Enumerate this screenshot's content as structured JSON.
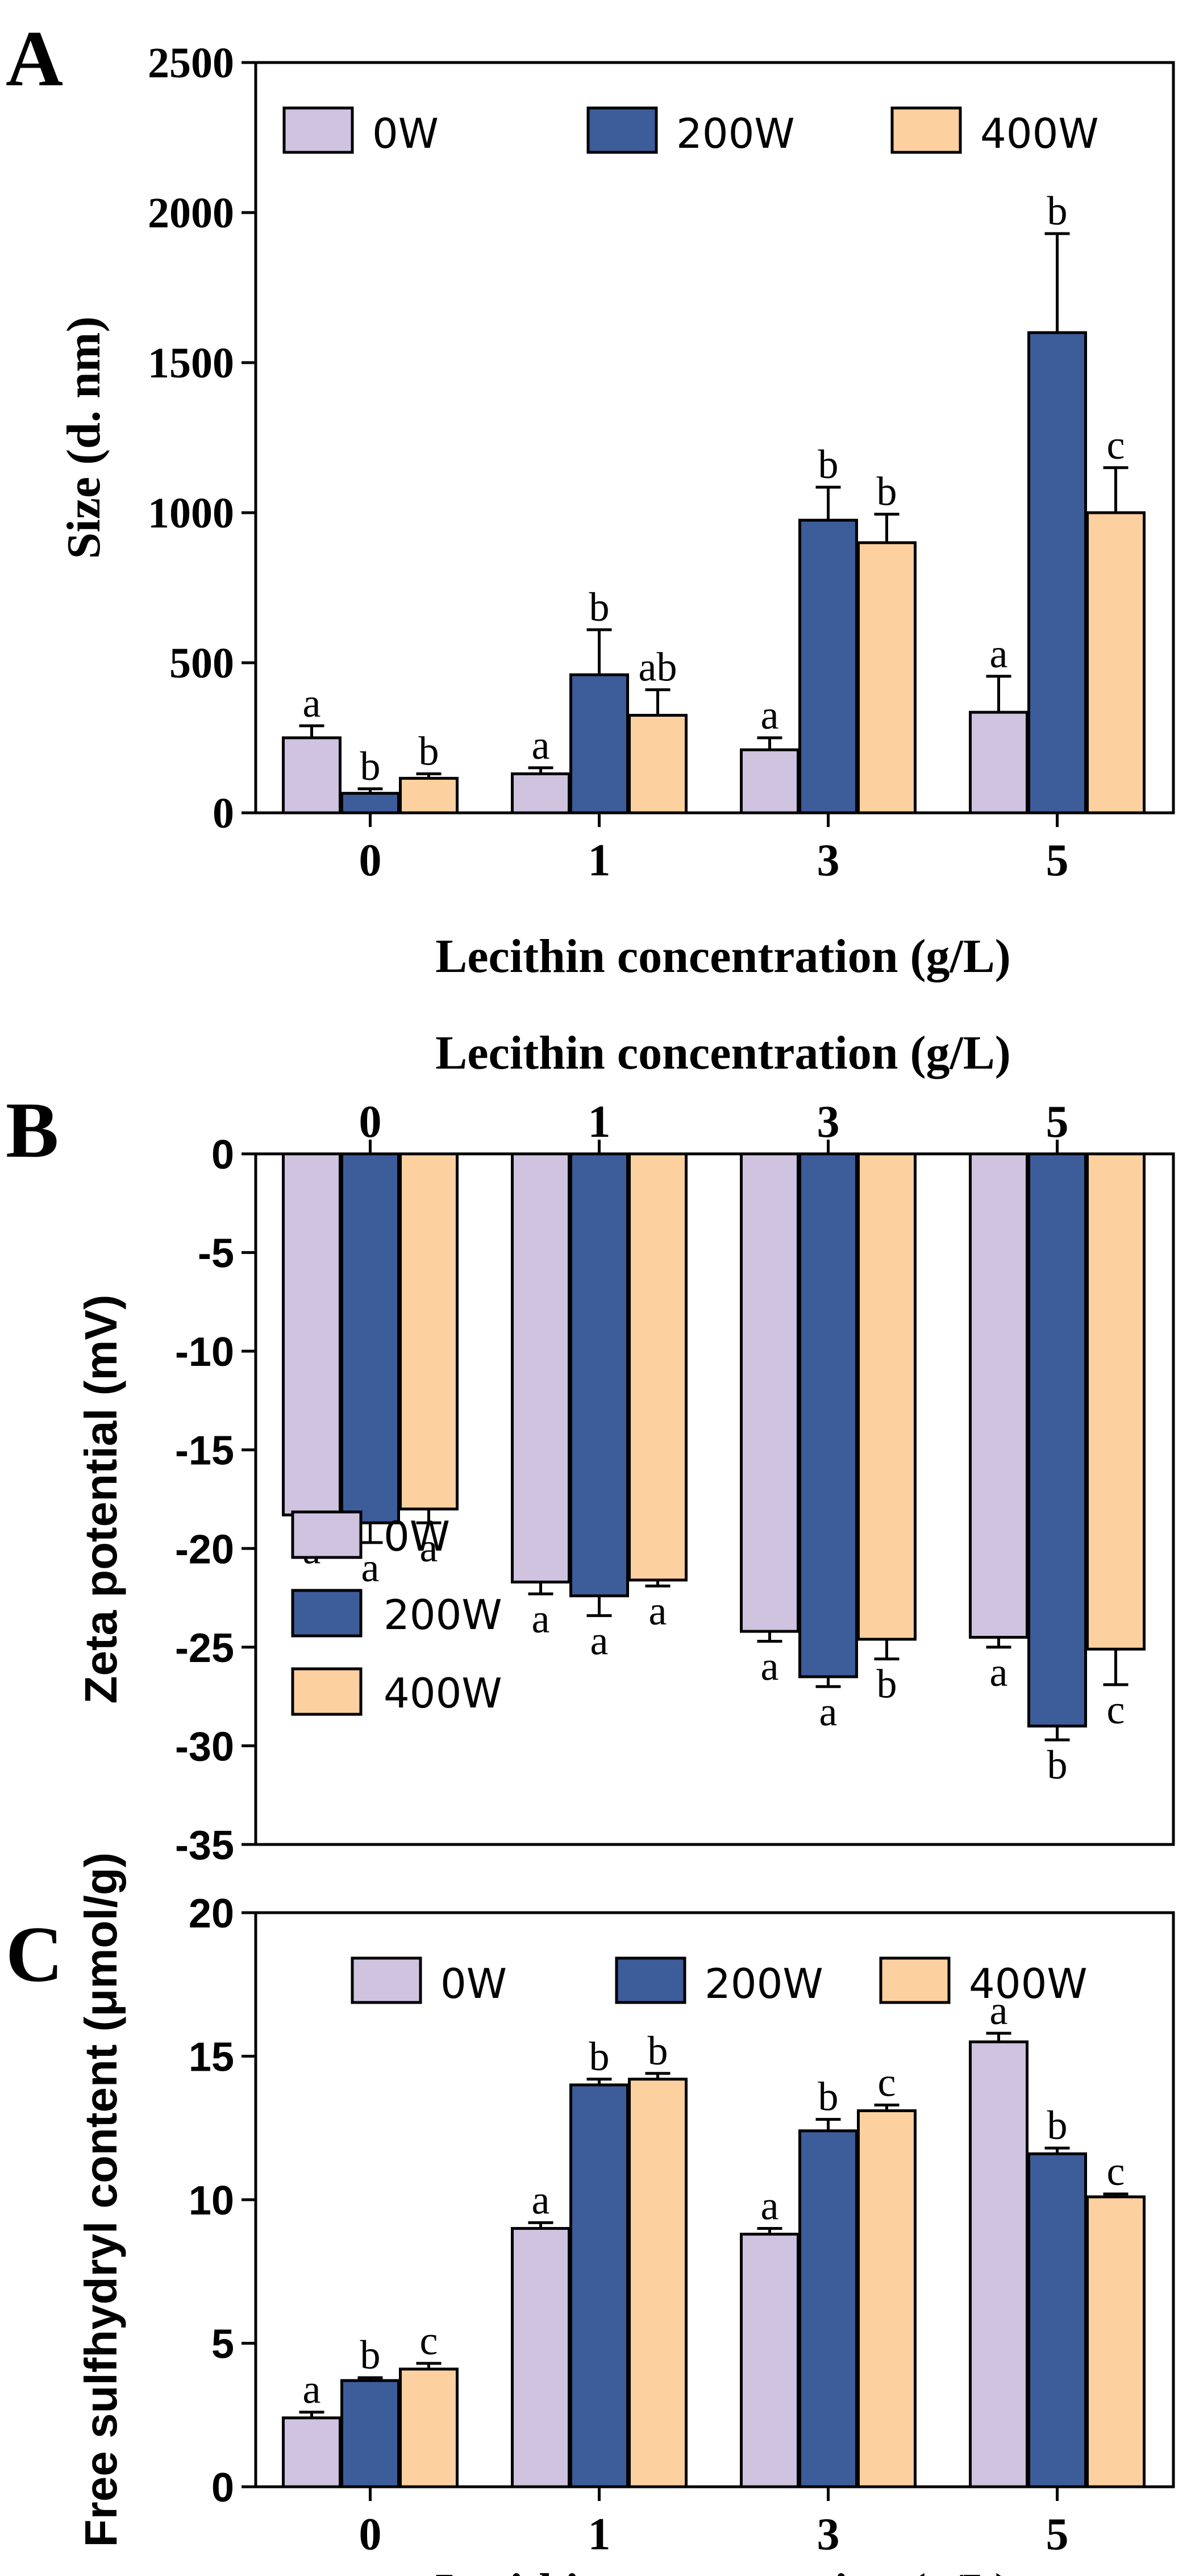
{
  "series_names": [
    "0W",
    "200W",
    "400W"
  ],
  "colors": {
    "0W": "#cfc3e0",
    "200W": "#3d5c9a",
    "400W": "#fdd0a0",
    "stroke": "#000000"
  },
  "chart_data": [
    {
      "panel": "A",
      "type": "bar",
      "categories": [
        "0",
        "1",
        "3",
        "5"
      ],
      "xlabel": "Lecithin concentration (g/L)",
      "ylabel": "Size (d. nm)",
      "ylim": [
        0,
        2500
      ],
      "yticks": [
        0,
        500,
        1000,
        1500,
        2000,
        2500
      ],
      "legend": "top",
      "series": [
        {
          "name": "0W",
          "values": [
            250,
            130,
            210,
            335
          ],
          "errors": [
            40,
            20,
            40,
            120
          ],
          "letters": [
            "a",
            "a",
            "a",
            "a"
          ]
        },
        {
          "name": "200W",
          "values": [
            65,
            460,
            975,
            1600
          ],
          "errors": [
            15,
            150,
            110,
            330
          ],
          "letters": [
            "b",
            "b",
            "b",
            "b"
          ]
        },
        {
          "name": "400W",
          "values": [
            115,
            325,
            900,
            1000
          ],
          "errors": [
            15,
            85,
            95,
            150
          ],
          "letters": [
            "b",
            "ab",
            "b",
            "c"
          ]
        }
      ]
    },
    {
      "panel": "B",
      "type": "bar",
      "categories": [
        "0",
        "1",
        "3",
        "5"
      ],
      "xlabel": "Lecithin concentration (g/L)",
      "ylabel": "Zeta potential (mV)",
      "ylim": [
        -35,
        0
      ],
      "yticks": [
        0,
        -5,
        -10,
        -15,
        -20,
        -25,
        -30,
        -35
      ],
      "legend": "bottom-left",
      "series": [
        {
          "name": "0W",
          "values": [
            -18.3,
            -21.7,
            -24.2,
            -24.5
          ],
          "errors": [
            0.5,
            0.6,
            0.5,
            0.5
          ],
          "letters": [
            "a",
            "a",
            "a",
            "a"
          ]
        },
        {
          "name": "200W",
          "values": [
            -18.7,
            -22.4,
            -26.5,
            -29.0
          ],
          "errors": [
            1.0,
            1.0,
            0.5,
            0.7
          ],
          "letters": [
            "a",
            "a",
            "a",
            "b"
          ]
        },
        {
          "name": "400W",
          "values": [
            -18.0,
            -21.6,
            -24.6,
            -25.1
          ],
          "errors": [
            0.7,
            0.3,
            1.0,
            1.8
          ],
          "letters": [
            "a",
            "a",
            "b",
            "c"
          ]
        }
      ]
    },
    {
      "panel": "C",
      "type": "bar",
      "categories": [
        "0",
        "1",
        "3",
        "5"
      ],
      "xlabel": "Lecithin concentration (g/L)",
      "ylabel": "Free sulfhydryl content (μmol/g)",
      "ylim": [
        0,
        20
      ],
      "yticks": [
        0,
        5,
        10,
        15,
        20
      ],
      "legend": "top",
      "series": [
        {
          "name": "0W",
          "values": [
            2.4,
            9.0,
            8.8,
            15.5
          ],
          "errors": [
            0.2,
            0.2,
            0.2,
            0.3
          ],
          "letters": [
            "a",
            "a",
            "a",
            "a"
          ]
        },
        {
          "name": "200W",
          "values": [
            3.7,
            14.0,
            12.4,
            11.6
          ],
          "errors": [
            0.1,
            0.2,
            0.4,
            0.2
          ],
          "letters": [
            "b",
            "b",
            "b",
            "b"
          ]
        },
        {
          "name": "400W",
          "values": [
            4.1,
            14.2,
            13.1,
            10.1
          ],
          "errors": [
            0.2,
            0.2,
            0.2,
            0.1
          ],
          "letters": [
            "c",
            "b",
            "c",
            "c"
          ]
        }
      ]
    }
  ]
}
